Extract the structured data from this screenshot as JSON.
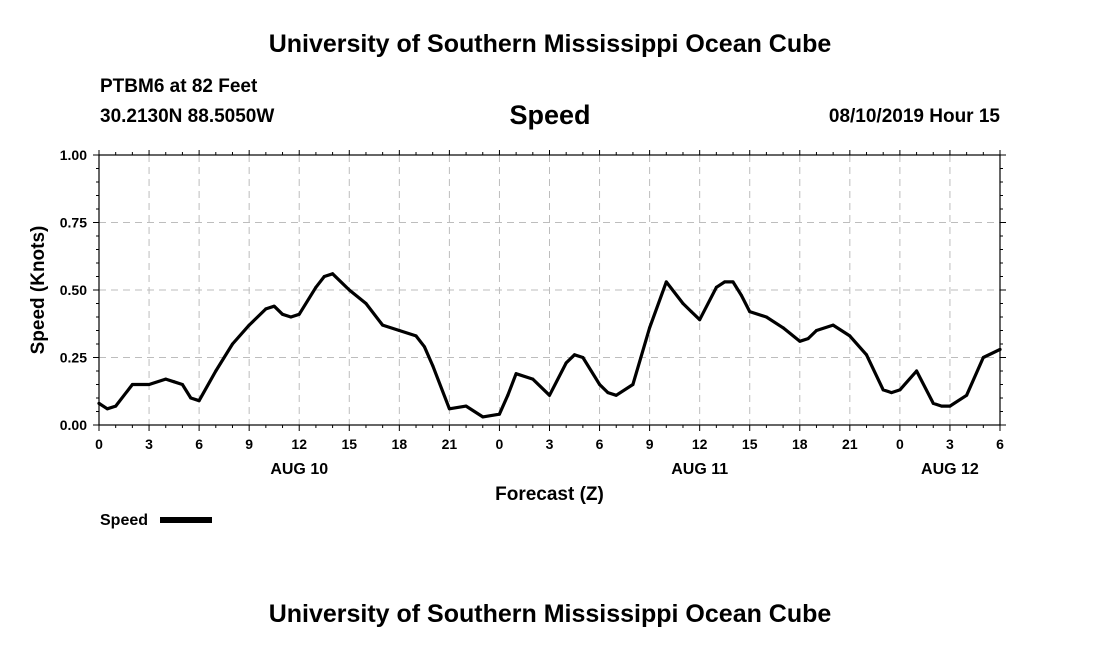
{
  "header": {
    "title_top": "University of Southern Mississippi Ocean Cube",
    "station": "PTBM6 at 82 Feet",
    "coords": "30.2130N 88.5050W",
    "datetime": "08/10/2019 Hour 15"
  },
  "footer": {
    "title_bottom": "University of Southern Mississippi Ocean Cube"
  },
  "chart_data": {
    "type": "line",
    "title": "Speed",
    "xlabel": "Forecast (Z)",
    "ylabel": "Speed (Knots)",
    "ylim": [
      0,
      1.0
    ],
    "xlim": [
      0,
      54
    ],
    "x_unit": "hours from 08/10/2019 00Z",
    "y_ticks": [
      0.0,
      0.25,
      0.5,
      0.75,
      1.0
    ],
    "y_tick_labels": [
      "0.00",
      "0.25",
      "0.50",
      "0.75",
      "1.00"
    ],
    "x_ticks": [
      0,
      3,
      6,
      9,
      12,
      15,
      18,
      21,
      24,
      27,
      30,
      33,
      36,
      39,
      42,
      45,
      48,
      51,
      54
    ],
    "x_tick_labels": [
      "0",
      "3",
      "6",
      "9",
      "12",
      "15",
      "18",
      "21",
      "0",
      "3",
      "6",
      "9",
      "12",
      "15",
      "18",
      "21",
      "0",
      "3",
      "6"
    ],
    "date_labels": [
      {
        "x": 12,
        "label": "AUG 10"
      },
      {
        "x": 36,
        "label": "AUG 11"
      },
      {
        "x": 51,
        "label": "AUG 12"
      }
    ],
    "grid": true,
    "legend": {
      "placement": "bottom-left",
      "label": "Speed",
      "color": "#000000"
    },
    "series": [
      {
        "name": "Speed",
        "color": "#000000",
        "x": [
          0,
          0.5,
          1,
          2,
          3,
          4,
          4.5,
          5,
          5.5,
          6,
          7,
          8,
          9,
          10,
          10.5,
          11,
          11.5,
          12,
          13,
          13.5,
          14,
          15,
          16,
          17,
          18,
          19,
          19.5,
          20,
          21,
          22,
          23,
          24,
          24.5,
          25,
          26,
          27,
          28,
          28.5,
          29,
          30,
          30.5,
          31,
          32,
          33,
          34,
          35,
          35.5,
          36,
          37,
          37.5,
          38,
          38.5,
          39,
          40,
          41,
          42,
          42.5,
          43,
          44,
          45,
          46,
          47,
          47.5,
          48,
          49,
          50,
          50.5,
          51,
          52,
          53,
          54
        ],
        "values": [
          0.08,
          0.06,
          0.07,
          0.15,
          0.15,
          0.17,
          0.16,
          0.15,
          0.1,
          0.09,
          0.2,
          0.3,
          0.37,
          0.43,
          0.44,
          0.41,
          0.4,
          0.41,
          0.51,
          0.55,
          0.56,
          0.5,
          0.45,
          0.37,
          0.35,
          0.33,
          0.29,
          0.22,
          0.06,
          0.07,
          0.03,
          0.04,
          0.11,
          0.19,
          0.17,
          0.11,
          0.23,
          0.26,
          0.25,
          0.15,
          0.12,
          0.11,
          0.15,
          0.36,
          0.53,
          0.45,
          0.42,
          0.39,
          0.51,
          0.53,
          0.53,
          0.48,
          0.42,
          0.4,
          0.36,
          0.31,
          0.32,
          0.35,
          0.37,
          0.33,
          0.26,
          0.13,
          0.12,
          0.13,
          0.2,
          0.08,
          0.07,
          0.07,
          0.11,
          0.25,
          0.28
        ]
      }
    ]
  }
}
